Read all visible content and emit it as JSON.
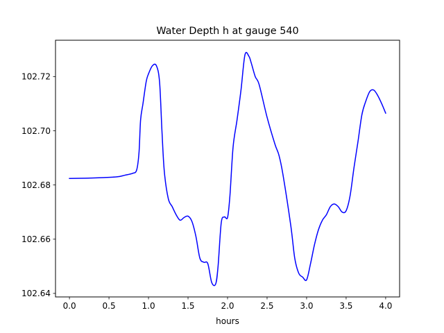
{
  "chart_data": {
    "type": "line",
    "title": "Water Depth h at gauge 540",
    "xlabel": "hours",
    "ylabel": "",
    "xlim": [
      -0.1765,
      4.1765
    ],
    "ylim": [
      102.6387,
      102.7334
    ],
    "grid": false,
    "xticks": [
      0.0,
      0.5,
      1.0,
      1.5,
      2.0,
      2.5,
      3.0,
      3.5,
      4.0
    ],
    "xtick_labels": [
      "0.0",
      "0.5",
      "1.0",
      "1.5",
      "2.0",
      "2.5",
      "3.0",
      "3.5",
      "4.0"
    ],
    "yticks": [
      102.64,
      102.66,
      102.68,
      102.7,
      102.72
    ],
    "ytick_labels": [
      "102.64",
      "102.66",
      "102.68",
      "102.70",
      "102.72"
    ],
    "series": [
      {
        "name": "",
        "color": "#0000ff",
        "x": [
          0.0,
          0.2,
          0.4,
          0.6,
          0.7,
          0.8,
          0.85,
          0.88,
          0.9,
          0.93,
          0.97,
          1.0,
          1.05,
          1.1,
          1.14,
          1.17,
          1.2,
          1.25,
          1.3,
          1.35,
          1.4,
          1.45,
          1.5,
          1.55,
          1.6,
          1.65,
          1.7,
          1.75,
          1.8,
          1.85,
          1.88,
          1.92,
          1.96,
          2.0,
          2.03,
          2.07,
          2.12,
          2.17,
          2.22,
          2.27,
          2.3,
          2.35,
          2.4,
          2.5,
          2.6,
          2.65,
          2.7,
          2.8,
          2.85,
          2.9,
          2.95,
          3.0,
          3.05,
          3.1,
          3.15,
          3.2,
          3.25,
          3.3,
          3.35,
          3.4,
          3.45,
          3.5,
          3.55,
          3.6,
          3.65,
          3.7,
          3.75,
          3.8,
          3.85,
          3.9,
          3.95,
          4.0
        ],
        "y": [
          102.6824,
          102.6825,
          102.6827,
          102.683,
          102.6836,
          102.6843,
          102.6855,
          102.692,
          102.704,
          102.71,
          102.718,
          102.721,
          102.724,
          102.724,
          102.718,
          102.7,
          102.685,
          102.675,
          102.672,
          102.669,
          102.667,
          102.668,
          102.6685,
          102.6665,
          102.661,
          102.653,
          102.6515,
          102.651,
          102.644,
          102.6435,
          102.65,
          102.666,
          102.6682,
          102.668,
          102.676,
          102.694,
          102.704,
          102.715,
          102.728,
          102.7275,
          102.725,
          102.72,
          102.717,
          102.705,
          102.695,
          102.691,
          102.684,
          102.665,
          102.653,
          102.6475,
          102.646,
          102.645,
          102.651,
          102.658,
          102.6635,
          102.667,
          102.669,
          102.672,
          102.673,
          102.672,
          102.67,
          102.6705,
          102.676,
          102.6865,
          102.696,
          102.706,
          102.711,
          102.7145,
          102.715,
          102.713,
          102.71,
          102.7065
        ]
      }
    ]
  }
}
